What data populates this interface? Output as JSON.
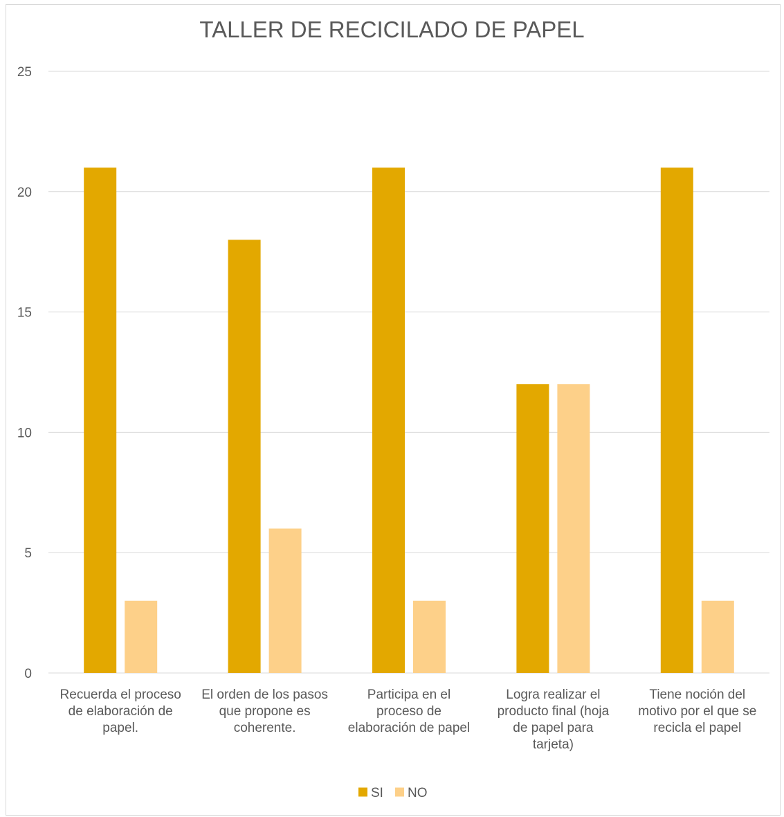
{
  "chart_data": {
    "type": "bar",
    "title": "TALLER DE RECICILADO DE PAPEL",
    "xlabel": "",
    "ylabel": "",
    "ylim": [
      0,
      25
    ],
    "yticks": [
      0,
      5,
      10,
      15,
      20,
      25
    ],
    "grid": true,
    "legend_position": "bottom",
    "categories": [
      [
        "Recuerda el proceso",
        "de elaboración de",
        "papel."
      ],
      [
        "El orden de los pasos",
        "que propone es",
        "coherente."
      ],
      [
        "Participa en el",
        "proceso de",
        "elaboración de papel"
      ],
      [
        "Logra realizar el",
        "producto final (hoja",
        "de papel para",
        "tarjeta)"
      ],
      [
        "Tiene noción del",
        "motivo por el que se",
        "recicla el papel"
      ]
    ],
    "series": [
      {
        "name": "SI",
        "color": "#E3A800",
        "values": [
          21,
          18,
          21,
          12,
          21
        ]
      },
      {
        "name": "NO",
        "color": "#FDD089",
        "values": [
          3,
          6,
          3,
          12,
          3
        ]
      }
    ]
  }
}
